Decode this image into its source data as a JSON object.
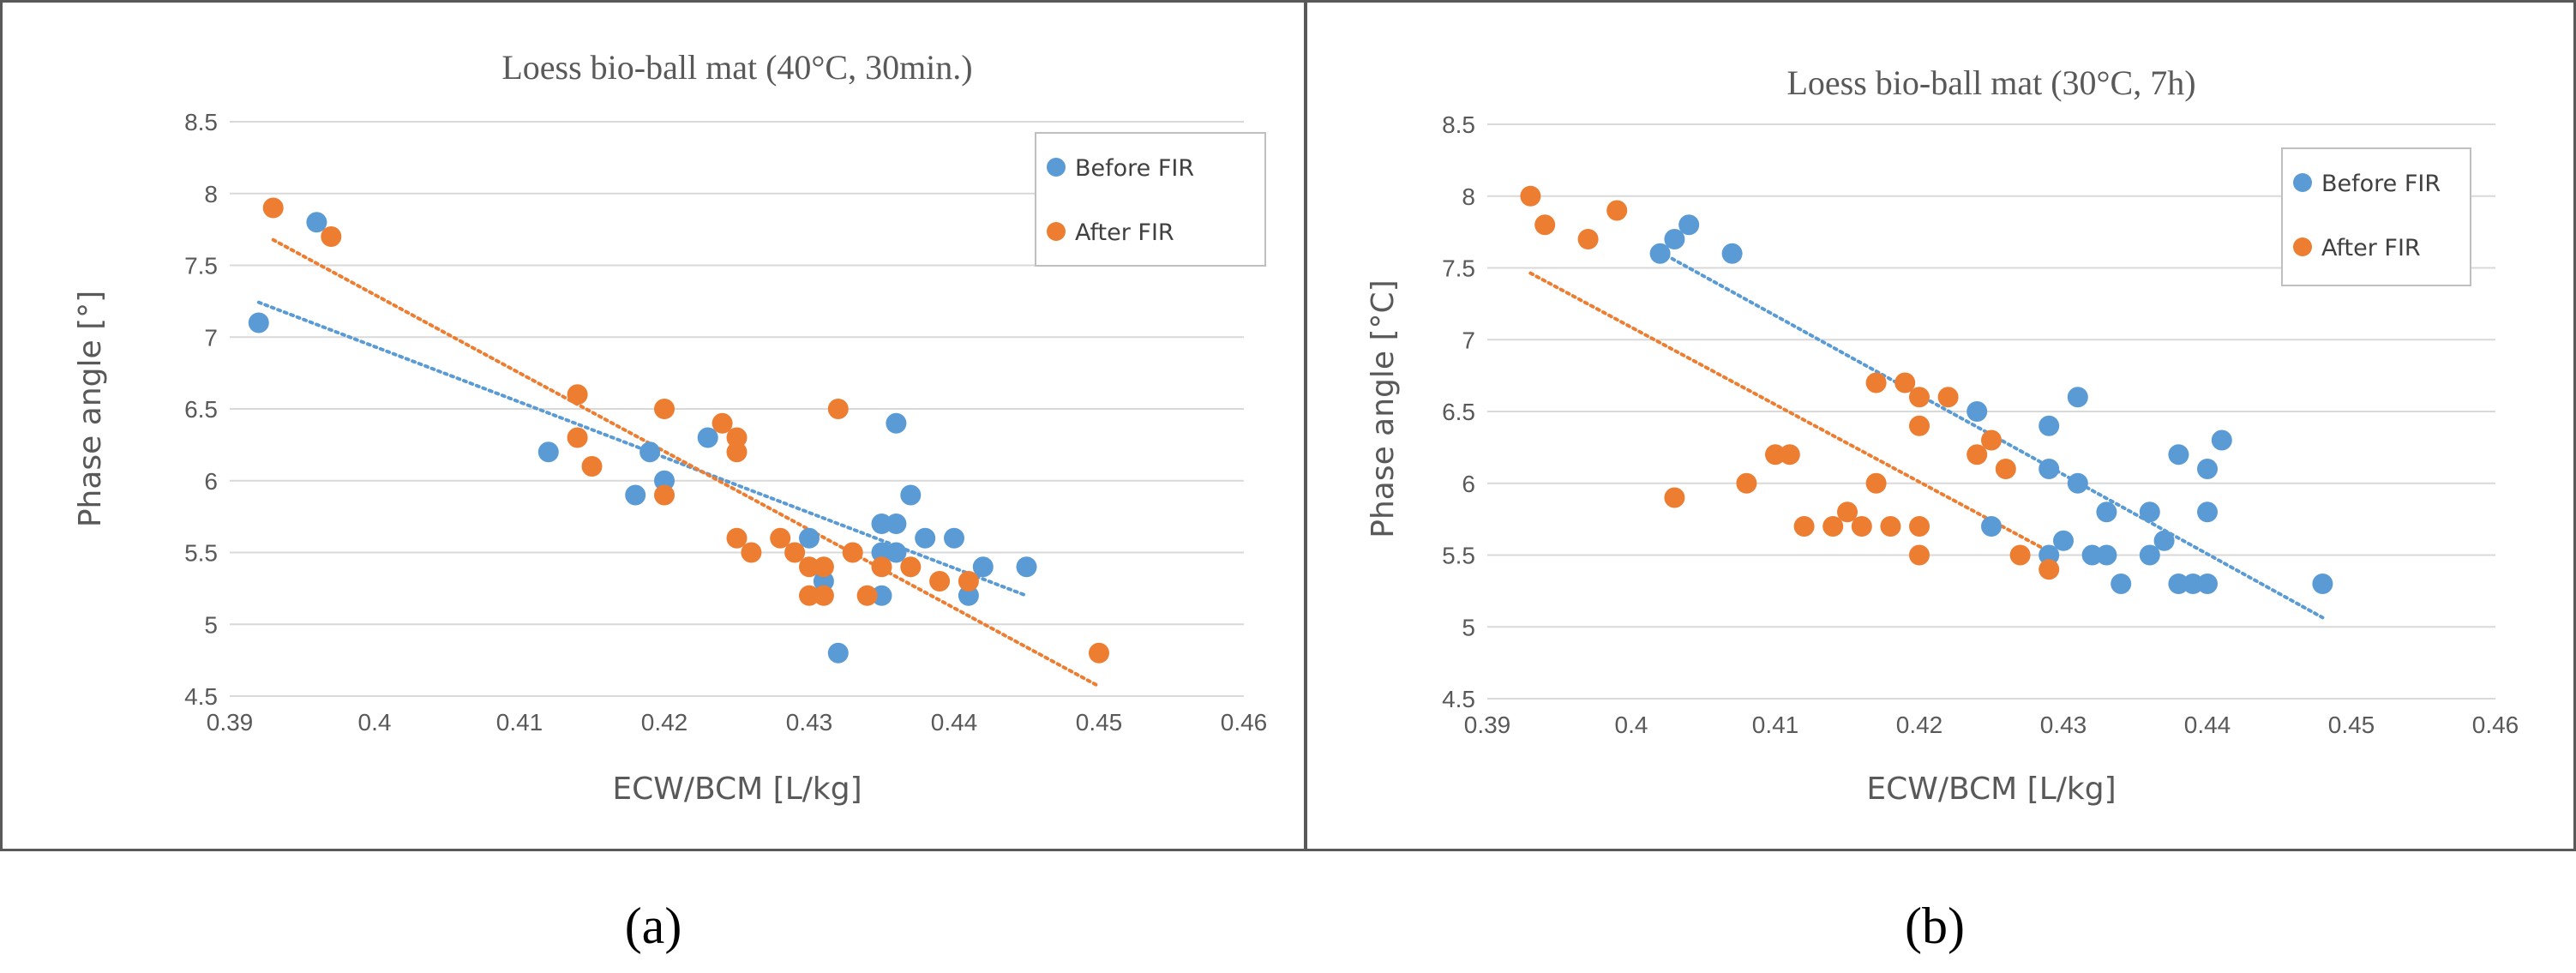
{
  "colors": {
    "before": "#5b9bd5",
    "after": "#ed7d31",
    "grid": "#d9d9d9",
    "frame": "#595959"
  },
  "chart_data": [
    {
      "type": "scatter",
      "title": "Loess bio-ball mat (40°C, 30min.)",
      "xlabel": "ECW/BCM [L/kg]",
      "ylabel": "Phase angle [°]",
      "caption": "(a)",
      "xlim": [
        0.39,
        0.46
      ],
      "ylim": [
        4.5,
        8.5
      ],
      "x_ticks": [
        0.39,
        0.4,
        0.41,
        0.42,
        0.43,
        0.44,
        0.45,
        0.46
      ],
      "x_tick_labels": [
        "0.39",
        "0.4",
        "0.41",
        "0.42",
        "0.43",
        "0.44",
        "0.45",
        "0.46"
      ],
      "y_ticks": [
        4.5,
        5,
        5.5,
        6,
        6.5,
        7,
        7.5,
        8,
        8.5
      ],
      "y_tick_labels": [
        "4.5",
        "5",
        "5.5",
        "6",
        "6.5",
        "7",
        "7.5",
        "8",
        "8.5"
      ],
      "grid": "horizontal",
      "legend": "top-right",
      "series": [
        {
          "name": "Before FIR",
          "color": "#5b9bd5",
          "trendline": "linear-dotted",
          "points": [
            [
              0.392,
              7.1
            ],
            [
              0.396,
              7.8
            ],
            [
              0.412,
              6.2
            ],
            [
              0.418,
              5.9
            ],
            [
              0.419,
              6.2
            ],
            [
              0.42,
              6.0
            ],
            [
              0.423,
              6.3
            ],
            [
              0.43,
              5.6
            ],
            [
              0.431,
              5.3
            ],
            [
              0.432,
              4.8
            ],
            [
              0.435,
              5.7
            ],
            [
              0.435,
              5.5
            ],
            [
              0.435,
              5.2
            ],
            [
              0.436,
              6.4
            ],
            [
              0.436,
              5.7
            ],
            [
              0.436,
              5.5
            ],
            [
              0.437,
              5.9
            ],
            [
              0.438,
              5.6
            ],
            [
              0.44,
              5.6
            ],
            [
              0.441,
              5.2
            ],
            [
              0.442,
              5.4
            ],
            [
              0.445,
              5.4
            ]
          ]
        },
        {
          "name": "After FIR",
          "color": "#ed7d31",
          "trendline": "linear-dotted",
          "points": [
            [
              0.393,
              7.9
            ],
            [
              0.397,
              7.7
            ],
            [
              0.414,
              6.6
            ],
            [
              0.414,
              6.3
            ],
            [
              0.415,
              6.1
            ],
            [
              0.42,
              6.5
            ],
            [
              0.42,
              5.9
            ],
            [
              0.424,
              6.4
            ],
            [
              0.425,
              6.3
            ],
            [
              0.425,
              6.2
            ],
            [
              0.425,
              5.6
            ],
            [
              0.426,
              5.5
            ],
            [
              0.428,
              5.6
            ],
            [
              0.429,
              5.5
            ],
            [
              0.43,
              5.4
            ],
            [
              0.43,
              5.2
            ],
            [
              0.431,
              5.4
            ],
            [
              0.431,
              5.2
            ],
            [
              0.432,
              6.5
            ],
            [
              0.433,
              5.5
            ],
            [
              0.434,
              5.2
            ],
            [
              0.435,
              5.4
            ],
            [
              0.437,
              5.4
            ],
            [
              0.439,
              5.3
            ],
            [
              0.441,
              5.3
            ],
            [
              0.45,
              4.8
            ]
          ]
        }
      ]
    },
    {
      "type": "scatter",
      "title": "Loess bio-ball mat (30°C, 7h)",
      "xlabel": "ECW/BCM [L/kg]",
      "ylabel": "Phase angle [°C]",
      "caption": "(b)",
      "xlim": [
        0.39,
        0.46
      ],
      "ylim": [
        4.5,
        8.5
      ],
      "x_ticks": [
        0.39,
        0.4,
        0.41,
        0.42,
        0.43,
        0.44,
        0.45,
        0.46
      ],
      "x_tick_labels": [
        "0.39",
        "0.4",
        "0.41",
        "0.42",
        "0.43",
        "0.44",
        "0.45",
        "0.46"
      ],
      "y_ticks": [
        4.5,
        5,
        5.5,
        6,
        6.5,
        7,
        7.5,
        8,
        8.5
      ],
      "y_tick_labels": [
        "4.5",
        "5",
        "5.5",
        "6",
        "6.5",
        "7",
        "7.5",
        "8",
        "8.5"
      ],
      "grid": "horizontal",
      "legend": "top-right",
      "series": [
        {
          "name": "Before FIR",
          "color": "#5b9bd5",
          "trendline": "linear-dotted",
          "points": [
            [
              0.402,
              7.6
            ],
            [
              0.403,
              7.7
            ],
            [
              0.404,
              7.8
            ],
            [
              0.407,
              7.6
            ],
            [
              0.424,
              6.5
            ],
            [
              0.425,
              5.7
            ],
            [
              0.429,
              6.4
            ],
            [
              0.429,
              6.1
            ],
            [
              0.429,
              5.5
            ],
            [
              0.43,
              5.6
            ],
            [
              0.431,
              6.6
            ],
            [
              0.431,
              6.0
            ],
            [
              0.432,
              5.5
            ],
            [
              0.433,
              5.8
            ],
            [
              0.433,
              5.5
            ],
            [
              0.434,
              5.3
            ],
            [
              0.436,
              5.8
            ],
            [
              0.436,
              5.5
            ],
            [
              0.437,
              5.6
            ],
            [
              0.438,
              6.2
            ],
            [
              0.438,
              5.3
            ],
            [
              0.439,
              5.3
            ],
            [
              0.44,
              6.1
            ],
            [
              0.44,
              5.8
            ],
            [
              0.44,
              5.3
            ],
            [
              0.441,
              6.3
            ],
            [
              0.448,
              5.3
            ]
          ]
        },
        {
          "name": "After FIR",
          "color": "#ed7d31",
          "trendline": "linear-dotted",
          "points": [
            [
              0.393,
              8.0
            ],
            [
              0.394,
              7.8
            ],
            [
              0.397,
              7.7
            ],
            [
              0.399,
              7.9
            ],
            [
              0.403,
              5.9
            ],
            [
              0.408,
              6.0
            ],
            [
              0.41,
              6.2
            ],
            [
              0.411,
              6.2
            ],
            [
              0.412,
              5.7
            ],
            [
              0.414,
              5.7
            ],
            [
              0.415,
              5.8
            ],
            [
              0.416,
              5.7
            ],
            [
              0.417,
              6.7
            ],
            [
              0.417,
              6.0
            ],
            [
              0.418,
              5.7
            ],
            [
              0.419,
              6.7
            ],
            [
              0.42,
              6.6
            ],
            [
              0.42,
              6.4
            ],
            [
              0.42,
              5.7
            ],
            [
              0.42,
              5.5
            ],
            [
              0.422,
              6.6
            ],
            [
              0.424,
              6.2
            ],
            [
              0.425,
              6.3
            ],
            [
              0.426,
              6.1
            ],
            [
              0.427,
              5.5
            ],
            [
              0.429,
              5.4
            ]
          ]
        }
      ]
    }
  ]
}
